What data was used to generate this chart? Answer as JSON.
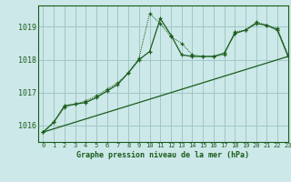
{
  "title": "Graphe pression niveau de la mer (hPa)",
  "background_color": "#cce8e8",
  "grid_color": "#a0c8c8",
  "line_color": "#1a5c1a",
  "xlim": [
    -0.5,
    23
  ],
  "ylim": [
    1015.5,
    1019.65
  ],
  "yticks": [
    1016,
    1017,
    1018,
    1019
  ],
  "xticks": [
    0,
    1,
    2,
    3,
    4,
    5,
    6,
    7,
    8,
    9,
    10,
    11,
    12,
    13,
    14,
    15,
    16,
    17,
    18,
    19,
    20,
    21,
    22,
    23
  ],
  "series_main_x": [
    0,
    1,
    2,
    3,
    4,
    5,
    6,
    7,
    8,
    9,
    10,
    11,
    12,
    13,
    14,
    15,
    16,
    17,
    18,
    19,
    20,
    21,
    22,
    23
  ],
  "series_main_y": [
    1015.8,
    1016.1,
    1016.6,
    1016.65,
    1016.7,
    1016.85,
    1017.05,
    1017.25,
    1017.6,
    1018.0,
    1018.25,
    1019.25,
    1018.75,
    1018.15,
    1018.1,
    1018.1,
    1018.1,
    1018.2,
    1018.8,
    1018.9,
    1019.1,
    1019.05,
    1018.9,
    1018.1
  ],
  "series_dotted_x": [
    0,
    1,
    2,
    3,
    4,
    5,
    6,
    7,
    8,
    9,
    10,
    11,
    12,
    13,
    14,
    15,
    16,
    17,
    18,
    19,
    20,
    21,
    22,
    23
  ],
  "series_dotted_y": [
    1015.8,
    1016.1,
    1016.55,
    1016.65,
    1016.75,
    1016.9,
    1017.1,
    1017.3,
    1017.6,
    1018.05,
    1019.4,
    1019.1,
    1018.7,
    1018.5,
    1018.15,
    1018.1,
    1018.1,
    1018.15,
    1018.85,
    1018.9,
    1019.15,
    1019.05,
    1018.95,
    1018.15
  ],
  "series_line_x": [
    0,
    23
  ],
  "series_line_y": [
    1015.8,
    1018.1
  ]
}
